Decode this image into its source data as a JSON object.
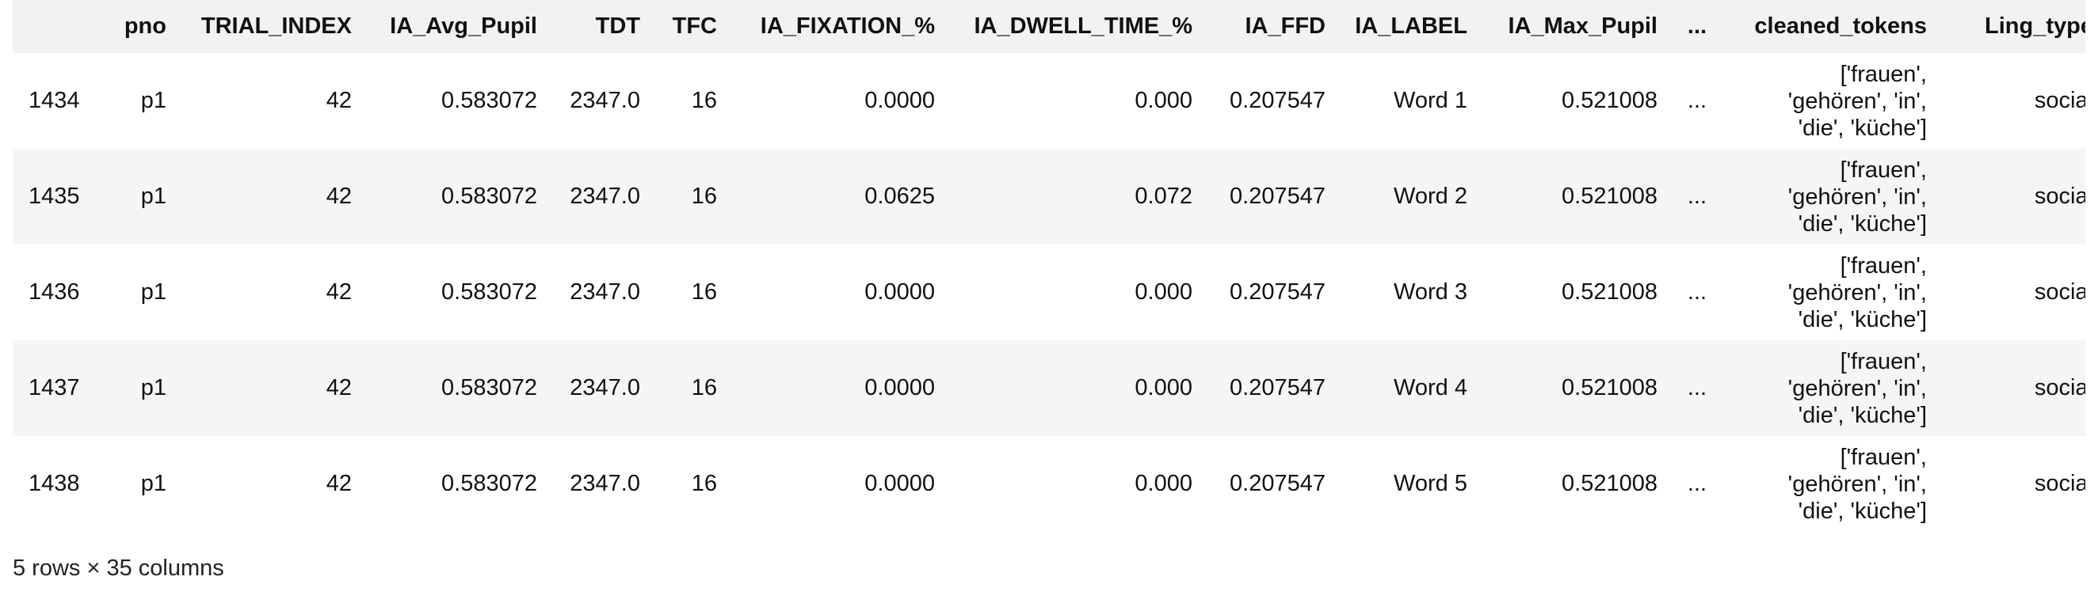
{
  "columns": [
    "",
    "pno",
    "TRIAL_INDEX",
    "IA_Avg_Pupil",
    "TDT",
    "TFC",
    "IA_FIXATION_%",
    "IA_DWELL_TIME_%",
    "IA_FFD",
    "IA_LABEL",
    "IA_Max_Pupil",
    "...",
    "cleaned_tokens",
    "Ling_type"
  ],
  "rows": [
    {
      "idx": "1434",
      "pno": "p1",
      "trial_index": "42",
      "ia_avg_pupil": "0.583072",
      "tdt": "2347.0",
      "tfc": "16",
      "ia_fixation_pct": "0.0000",
      "ia_dwell_time_pct": "0.000",
      "ia_ffd": "0.207547",
      "ia_label": "Word 1",
      "ia_max_pupil": "0.521008",
      "ellipsis": "...",
      "cleaned_tokens": "['frauen', 'gehören', 'in', 'die', 'küche']",
      "ling_type": "social"
    },
    {
      "idx": "1435",
      "pno": "p1",
      "trial_index": "42",
      "ia_avg_pupil": "0.583072",
      "tdt": "2347.0",
      "tfc": "16",
      "ia_fixation_pct": "0.0625",
      "ia_dwell_time_pct": "0.072",
      "ia_ffd": "0.207547",
      "ia_label": "Word 2",
      "ia_max_pupil": "0.521008",
      "ellipsis": "...",
      "cleaned_tokens": "['frauen', 'gehören', 'in', 'die', 'küche']",
      "ling_type": "social"
    },
    {
      "idx": "1436",
      "pno": "p1",
      "trial_index": "42",
      "ia_avg_pupil": "0.583072",
      "tdt": "2347.0",
      "tfc": "16",
      "ia_fixation_pct": "0.0000",
      "ia_dwell_time_pct": "0.000",
      "ia_ffd": "0.207547",
      "ia_label": "Word 3",
      "ia_max_pupil": "0.521008",
      "ellipsis": "...",
      "cleaned_tokens": "['frauen', 'gehören', 'in', 'die', 'küche']",
      "ling_type": "social"
    },
    {
      "idx": "1437",
      "pno": "p1",
      "trial_index": "42",
      "ia_avg_pupil": "0.583072",
      "tdt": "2347.0",
      "tfc": "16",
      "ia_fixation_pct": "0.0000",
      "ia_dwell_time_pct": "0.000",
      "ia_ffd": "0.207547",
      "ia_label": "Word 4",
      "ia_max_pupil": "0.521008",
      "ellipsis": "...",
      "cleaned_tokens": "['frauen', 'gehören', 'in', 'die', 'küche']",
      "ling_type": "social"
    },
    {
      "idx": "1438",
      "pno": "p1",
      "trial_index": "42",
      "ia_avg_pupil": "0.583072",
      "tdt": "2347.0",
      "tfc": "16",
      "ia_fixation_pct": "0.0000",
      "ia_dwell_time_pct": "0.000",
      "ia_ffd": "0.207547",
      "ia_label": "Word 5",
      "ia_max_pupil": "0.521008",
      "ellipsis": "...",
      "cleaned_tokens": "['frauen', 'gehören', 'in', 'die', 'küche']",
      "ling_type": "social"
    }
  ],
  "footer": "5 rows × 35 columns"
}
